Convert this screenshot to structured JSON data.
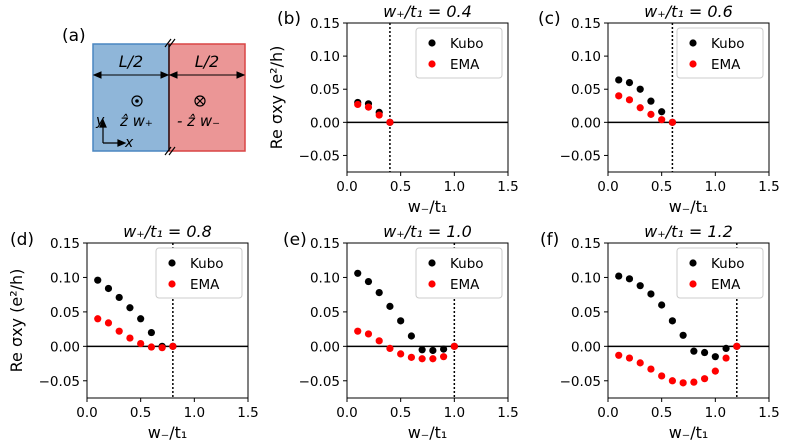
{
  "figure": {
    "schematic": {
      "label": "(a)",
      "left_width": "L/2",
      "right_width": "L/2",
      "left_field": "ẑ w₊",
      "right_field": "- ẑ w₋",
      "y_axis": "y",
      "x_axis": "x",
      "colors": {
        "left": "#8fb6d9",
        "left_edge": "#4a86c1",
        "right": "#eb9696",
        "right_edge": "#d94545"
      }
    },
    "colors": {
      "kubo": "#000000",
      "ema": "#ff0000"
    },
    "legend": [
      "Kubo",
      "EMA"
    ]
  },
  "chart_data": [
    {
      "type": "scatter",
      "panel": "(b)",
      "title": "w₊/t₁ = 0.4",
      "xlabel": "w₋/t₁",
      "ylabel": "Re σxy (e²/h)",
      "xlim": [
        0,
        1.5
      ],
      "ylim": [
        -0.075,
        0.15
      ],
      "xticks": [
        "0.0",
        "0.5",
        "1.0",
        "1.5"
      ],
      "yticks": [
        "−0.05",
        "0.00",
        "0.05",
        "0.10",
        "0.15"
      ],
      "vline": 0.4,
      "legend_position": "top-right",
      "series": [
        {
          "name": "Kubo",
          "x": [
            0.1,
            0.2,
            0.3,
            0.4
          ],
          "y": [
            0.03,
            0.028,
            0.015,
            0.0
          ]
        },
        {
          "name": "EMA",
          "x": [
            0.1,
            0.2,
            0.3,
            0.4
          ],
          "y": [
            0.027,
            0.023,
            0.011,
            0.0
          ]
        }
      ]
    },
    {
      "type": "scatter",
      "panel": "(c)",
      "title": "w₊/t₁ = 0.6",
      "xlabel": "w₋/t₁",
      "ylabel": "",
      "xlim": [
        0,
        1.5
      ],
      "ylim": [
        -0.075,
        0.15
      ],
      "xticks": [
        "0.0",
        "0.5",
        "1.0",
        "1.5"
      ],
      "yticks": [
        "−0.05",
        "0.00",
        "0.05",
        "0.10",
        "0.15"
      ],
      "vline": 0.6,
      "legend_position": "top-right",
      "series": [
        {
          "name": "Kubo",
          "x": [
            0.1,
            0.2,
            0.3,
            0.4,
            0.5,
            0.6
          ],
          "y": [
            0.064,
            0.06,
            0.05,
            0.032,
            0.016,
            0.0
          ]
        },
        {
          "name": "EMA",
          "x": [
            0.1,
            0.2,
            0.3,
            0.4,
            0.5,
            0.6
          ],
          "y": [
            0.04,
            0.034,
            0.022,
            0.012,
            0.004,
            0.0
          ]
        }
      ]
    },
    {
      "type": "scatter",
      "panel": "(d)",
      "title": "w₊/t₁ = 0.8",
      "xlabel": "w₋/t₁",
      "ylabel": "Re σxy (e²/h)",
      "xlim": [
        0,
        1.5
      ],
      "ylim": [
        -0.075,
        0.15
      ],
      "xticks": [
        "0.0",
        "0.5",
        "1.0",
        "1.5"
      ],
      "yticks": [
        "−0.05",
        "0.00",
        "0.05",
        "0.10",
        "0.15"
      ],
      "vline": 0.8,
      "legend_position": "top-right",
      "series": [
        {
          "name": "Kubo",
          "x": [
            0.1,
            0.2,
            0.3,
            0.4,
            0.5,
            0.6,
            0.7,
            0.8
          ],
          "y": [
            0.096,
            0.084,
            0.071,
            0.056,
            0.04,
            0.02,
            0.0,
            0.0
          ]
        },
        {
          "name": "EMA",
          "x": [
            0.1,
            0.2,
            0.3,
            0.4,
            0.5,
            0.6,
            0.7,
            0.8
          ],
          "y": [
            0.04,
            0.034,
            0.022,
            0.012,
            0.004,
            -0.001,
            -0.002,
            0.0
          ]
        }
      ]
    },
    {
      "type": "scatter",
      "panel": "(e)",
      "title": "w₊/t₁ = 1.0",
      "xlabel": "w₋/t₁",
      "ylabel": "",
      "xlim": [
        0,
        1.5
      ],
      "ylim": [
        -0.075,
        0.15
      ],
      "xticks": [
        "0.0",
        "0.5",
        "1.0",
        "1.5"
      ],
      "yticks": [
        "−0.05",
        "0.00",
        "0.05",
        "0.10",
        "0.15"
      ],
      "vline": 1.0,
      "legend_position": "top-right",
      "series": [
        {
          "name": "Kubo",
          "x": [
            0.1,
            0.2,
            0.3,
            0.4,
            0.5,
            0.6,
            0.7,
            0.8,
            0.9,
            1.0
          ],
          "y": [
            0.106,
            0.094,
            0.078,
            0.058,
            0.037,
            0.015,
            -0.005,
            -0.006,
            -0.004,
            0.0
          ]
        },
        {
          "name": "EMA",
          "x": [
            0.1,
            0.2,
            0.3,
            0.4,
            0.5,
            0.6,
            0.7,
            0.8,
            0.9,
            1.0
          ],
          "y": [
            0.022,
            0.018,
            0.008,
            -0.003,
            -0.011,
            -0.016,
            -0.018,
            -0.018,
            -0.015,
            0.0
          ]
        }
      ]
    },
    {
      "type": "scatter",
      "panel": "(f)",
      "title": "w₊/t₁ = 1.2",
      "xlabel": "w₋/t₁",
      "ylabel": "",
      "xlim": [
        0,
        1.5
      ],
      "ylim": [
        -0.075,
        0.15
      ],
      "xticks": [
        "0.0",
        "0.5",
        "1.0",
        "1.5"
      ],
      "yticks": [
        "−0.05",
        "0.00",
        "0.05",
        "0.10",
        "0.15"
      ],
      "vline": 1.2,
      "legend_position": "top-right",
      "series": [
        {
          "name": "Kubo",
          "x": [
            0.1,
            0.2,
            0.3,
            0.4,
            0.5,
            0.6,
            0.7,
            0.8,
            0.9,
            1.0,
            1.1,
            1.2
          ],
          "y": [
            0.102,
            0.098,
            0.088,
            0.076,
            0.06,
            0.037,
            0.016,
            -0.007,
            -0.009,
            -0.015,
            -0.003,
            0.0
          ]
        },
        {
          "name": "EMA",
          "x": [
            0.1,
            0.2,
            0.3,
            0.4,
            0.5,
            0.6,
            0.7,
            0.8,
            0.9,
            1.0,
            1.1,
            1.2
          ],
          "y": [
            -0.013,
            -0.017,
            -0.024,
            -0.033,
            -0.043,
            -0.05,
            -0.053,
            -0.052,
            -0.047,
            -0.036,
            -0.017,
            0.0
          ]
        }
      ]
    }
  ]
}
